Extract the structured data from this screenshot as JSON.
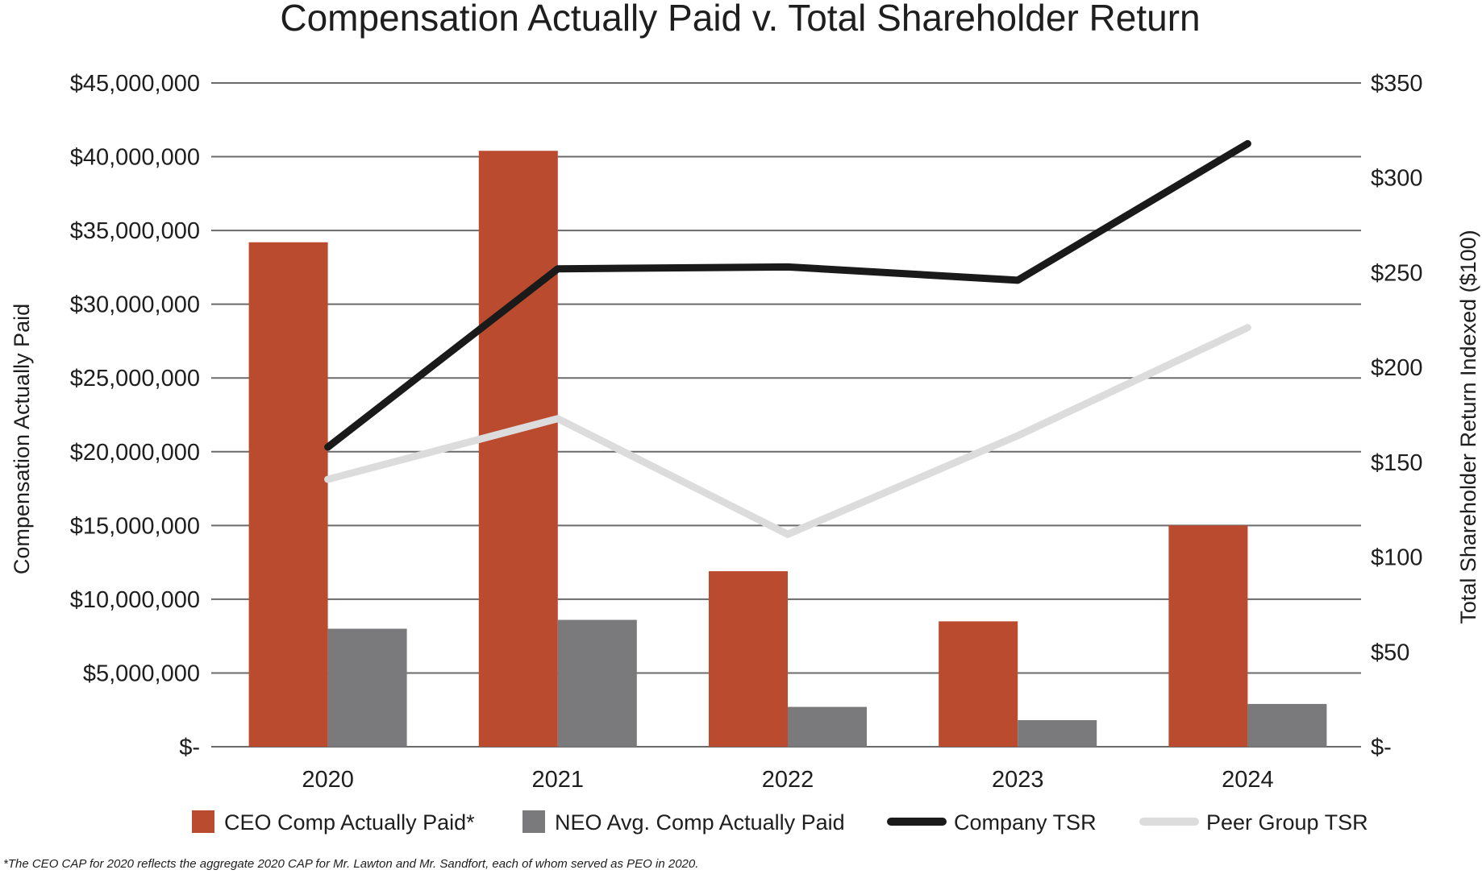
{
  "chart_data": {
    "type": "bar",
    "title": "Compensation Actually Paid v. Total Shareholder Return",
    "categories": [
      "2020",
      "2021",
      "2022",
      "2023",
      "2024"
    ],
    "series": [
      {
        "name": "CEO Comp Actually Paid*",
        "type": "bar",
        "axis": "left",
        "color": "#bb4b2f",
        "values": [
          34200000,
          40400000,
          11900000,
          8500000,
          15000000
        ]
      },
      {
        "name": "NEO Avg. Comp Actually Paid",
        "type": "bar",
        "axis": "left",
        "color": "#7a797b",
        "values": [
          8000000,
          8600000,
          2700000,
          1800000,
          2900000
        ]
      },
      {
        "name": "Company TSR",
        "type": "line",
        "axis": "right",
        "color": "#1a1a1a",
        "values": [
          158,
          252,
          253,
          246,
          318
        ]
      },
      {
        "name": "Peer Group TSR",
        "type": "line",
        "axis": "right",
        "color": "#dcdcdc",
        "values": [
          141,
          173,
          112,
          164,
          221
        ]
      }
    ],
    "ylabel": "Compensation Actually Paid",
    "y2label": "Total Shareholder Return Indexed ($100)",
    "ylim": [
      0,
      45000000
    ],
    "y2lim": [
      0,
      350
    ],
    "yticks": [
      0,
      5000000,
      10000000,
      15000000,
      20000000,
      25000000,
      30000000,
      35000000,
      40000000,
      45000000
    ],
    "ytick_labels": [
      "$-",
      "$5,000,000",
      "$10,000,000",
      "$15,000,000",
      "$20,000,000",
      "$25,000,000",
      "$30,000,000",
      "$35,000,000",
      "$40,000,000",
      "$45,000,000"
    ],
    "y2ticks": [
      0,
      50,
      100,
      150,
      200,
      250,
      300,
      350
    ],
    "y2tick_labels": [
      "$-",
      "$50",
      "$100",
      "$150",
      "$200",
      "$250",
      "$300",
      "$350"
    ],
    "grid": true,
    "legend": "bottom",
    "footnote": "*The CEO CAP for 2020 reflects the aggregate 2020 CAP for Mr. Lawton and Mr. Sandfort, each of whom served as PEO in 2020."
  }
}
